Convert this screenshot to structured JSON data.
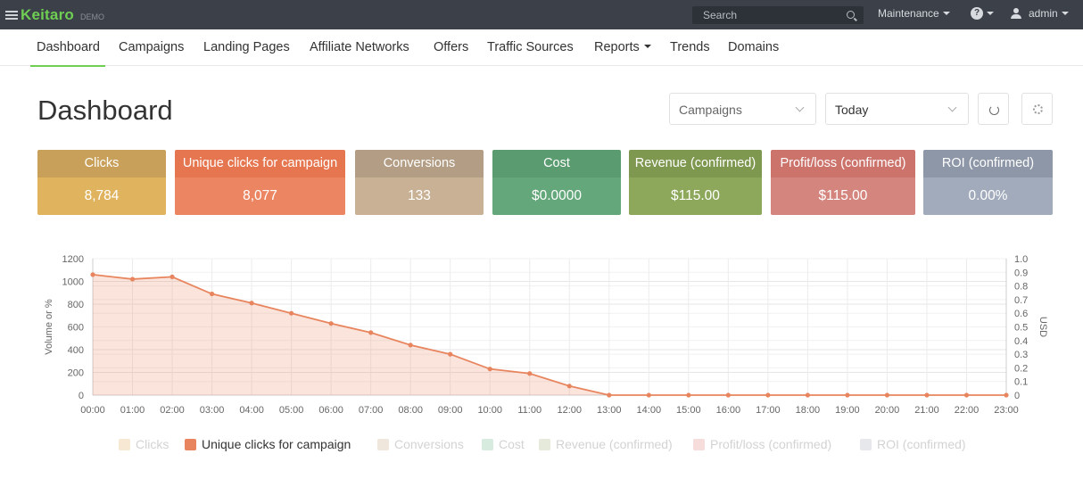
{
  "topbar": {
    "brand": "Keitaro",
    "brand_tag": "DEMO",
    "search_placeholder": "Search",
    "maintenance_label": "Maintenance",
    "help_glyph": "?",
    "user_label": "admin"
  },
  "nav": {
    "items": [
      {
        "label": "Dashboard",
        "active": true
      },
      {
        "label": "Campaigns"
      },
      {
        "label": "Landing Pages"
      },
      {
        "label": "Affiliate Networks"
      },
      {
        "label": "Offers"
      },
      {
        "label": "Traffic Sources"
      },
      {
        "label": "Reports",
        "has_dropdown": true
      },
      {
        "label": "Trends"
      },
      {
        "label": "Domains"
      }
    ]
  },
  "header": {
    "title": "Dashboard",
    "entity_select": "Campaigns",
    "period_select": "Today"
  },
  "metrics": [
    {
      "label": "Clicks",
      "value": "8,784",
      "head_color": "#c9a05a",
      "body_color": "#e0b35f"
    },
    {
      "label": "Unique clicks for campaign",
      "value": "8,077",
      "head_color": "#e5764f",
      "body_color": "#ec8662"
    },
    {
      "label": "Conversions",
      "value": "133",
      "head_color": "#b39d84",
      "body_color": "#c8b194"
    },
    {
      "label": "Cost",
      "value": "$0.0000",
      "head_color": "#5b9b70",
      "body_color": "#63a77a"
    },
    {
      "label": "Revenue (confirmed)",
      "value": "$115.00",
      "head_color": "#7f9850",
      "body_color": "#8da85b"
    },
    {
      "label": "Profit/loss (confirmed)",
      "value": "$115.00",
      "head_color": "#cc736c",
      "body_color": "#d4857e"
    },
    {
      "label": "ROI (confirmed)",
      "value": "0.00%",
      "head_color": "#8d97a8",
      "body_color": "#a1abbb"
    }
  ],
  "chart_data": {
    "type": "area",
    "x": [
      "00:00",
      "01:00",
      "02:00",
      "03:00",
      "04:00",
      "05:00",
      "06:00",
      "07:00",
      "08:00",
      "09:00",
      "10:00",
      "11:00",
      "12:00",
      "13:00",
      "14:00",
      "15:00",
      "16:00",
      "17:00",
      "18:00",
      "19:00",
      "20:00",
      "21:00",
      "22:00",
      "23:00"
    ],
    "series": [
      {
        "name": "Unique clicks for campaign",
        "color": "#e8855e",
        "values": [
          1060,
          1020,
          1040,
          890,
          810,
          720,
          630,
          550,
          440,
          360,
          230,
          190,
          80,
          0,
          0,
          0,
          0,
          0,
          0,
          0,
          0,
          0,
          0,
          0
        ]
      }
    ],
    "ylabel": "Volume or %",
    "y2label": "USD",
    "ylim": [
      0,
      1200
    ],
    "yticks": [
      "0",
      "200",
      "400",
      "600",
      "800",
      "1000",
      "1200"
    ],
    "y2lim": [
      0,
      1.0
    ],
    "y2ticks": [
      "0",
      "0.1",
      "0.2",
      "0.3",
      "0.4",
      "0.5",
      "0.6",
      "0.7",
      "0.8",
      "0.9",
      "1.0"
    ],
    "grid": true,
    "legend_position": "bottom",
    "legend": [
      {
        "name": "Clicks",
        "color": "#f6e8d2",
        "active": false
      },
      {
        "name": "Unique clicks for campaign",
        "color": "#e8855e",
        "active": true
      },
      {
        "name": "Conversions",
        "color": "#efe7dc",
        "active": false
      },
      {
        "name": "Cost",
        "color": "#d8ebdf",
        "active": false
      },
      {
        "name": "Revenue (confirmed)",
        "color": "#e5eadb",
        "active": false
      },
      {
        "name": "Profit/loss (confirmed)",
        "color": "#f6dcda",
        "active": false
      },
      {
        "name": "ROI (confirmed)",
        "color": "#e6e8ec",
        "active": false
      }
    ]
  }
}
